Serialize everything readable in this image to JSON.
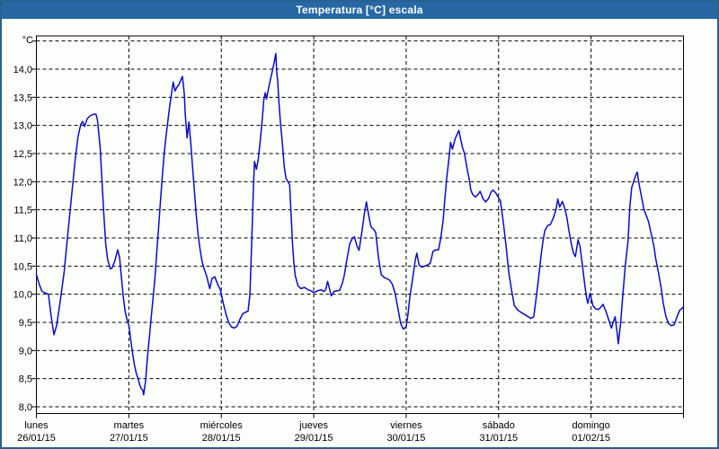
{
  "window": {
    "title": "Temperatura [°C] escala"
  },
  "colors": {
    "titlebar_bg": "#2768a4",
    "titlebar_text": "#ffffff",
    "window_border": "#26618f",
    "background": "#fcfefc",
    "grid": "#000000",
    "frame": "#000000",
    "line": "#0b0bc8",
    "label": "#000000"
  },
  "chart_data": {
    "type": "line",
    "title": "Temperatura [°C] escala",
    "y_unit_label": "°C",
    "ylim": [
      7.9,
      14.6
    ],
    "xlabel": "",
    "ylabel": "°C",
    "grid": "dashed",
    "legend": "none",
    "y_ticks": [
      {
        "value": 8.0,
        "label": "8,0"
      },
      {
        "value": 8.5,
        "label": "8,5"
      },
      {
        "value": 9.0,
        "label": "9,0"
      },
      {
        "value": 9.5,
        "label": "9,5"
      },
      {
        "value": 10.0,
        "label": "10,0"
      },
      {
        "value": 10.5,
        "label": "10,5"
      },
      {
        "value": 11.0,
        "label": "11,0"
      },
      {
        "value": 11.5,
        "label": "11,5"
      },
      {
        "value": 12.0,
        "label": "12,0"
      },
      {
        "value": 12.5,
        "label": "12,5"
      },
      {
        "value": 13.0,
        "label": "13,0"
      },
      {
        "value": 13.5,
        "label": "13,5"
      },
      {
        "value": 14.0,
        "label": "14,0"
      },
      {
        "value": 14.5,
        "label": ""
      }
    ],
    "x_days": [
      {
        "name": "lunes",
        "date": "26/01/15"
      },
      {
        "name": "martes",
        "date": "27/01/15"
      },
      {
        "name": "miércoles",
        "date": "28/01/15"
      },
      {
        "name": "jueves",
        "date": "29/01/15"
      },
      {
        "name": "viernes",
        "date": "30/01/15"
      },
      {
        "name": "sábado",
        "date": "31/01/15"
      },
      {
        "name": "domingo",
        "date": "01/02/15"
      }
    ],
    "series": [
      {
        "name": "Temperatura",
        "color": "#0b0bc8",
        "points": [
          [
            0.0,
            10.35
          ],
          [
            0.03,
            10.18
          ],
          [
            0.06,
            10.05
          ],
          [
            0.1,
            10.02
          ],
          [
            0.13,
            10.0
          ],
          [
            0.16,
            9.6
          ],
          [
            0.19,
            9.28
          ],
          [
            0.22,
            9.45
          ],
          [
            0.26,
            9.9
          ],
          [
            0.3,
            10.4
          ],
          [
            0.33,
            10.9
          ],
          [
            0.36,
            11.4
          ],
          [
            0.39,
            11.9
          ],
          [
            0.42,
            12.4
          ],
          [
            0.45,
            12.8
          ],
          [
            0.48,
            13.02
          ],
          [
            0.5,
            13.07
          ],
          [
            0.52,
            12.98
          ],
          [
            0.55,
            13.12
          ],
          [
            0.58,
            13.17
          ],
          [
            0.62,
            13.2
          ],
          [
            0.645,
            13.2
          ],
          [
            0.66,
            13.1
          ],
          [
            0.69,
            12.6
          ],
          [
            0.71,
            12.0
          ],
          [
            0.73,
            11.4
          ],
          [
            0.75,
            10.9
          ],
          [
            0.77,
            10.62
          ],
          [
            0.8,
            10.45
          ],
          [
            0.82,
            10.47
          ],
          [
            0.85,
            10.6
          ],
          [
            0.88,
            10.79
          ],
          [
            0.9,
            10.65
          ],
          [
            0.92,
            10.3
          ],
          [
            0.94,
            9.95
          ],
          [
            0.96,
            9.7
          ],
          [
            0.98,
            9.55
          ],
          [
            1.0,
            9.45
          ],
          [
            1.02,
            9.2
          ],
          [
            1.04,
            8.95
          ],
          [
            1.06,
            8.75
          ],
          [
            1.08,
            8.6
          ],
          [
            1.1,
            8.5
          ],
          [
            1.12,
            8.38
          ],
          [
            1.135,
            8.32
          ],
          [
            1.15,
            8.3
          ],
          [
            1.16,
            8.21
          ],
          [
            1.18,
            8.45
          ],
          [
            1.2,
            8.85
          ],
          [
            1.22,
            9.2
          ],
          [
            1.24,
            9.55
          ],
          [
            1.26,
            9.9
          ],
          [
            1.28,
            10.25
          ],
          [
            1.3,
            10.7
          ],
          [
            1.32,
            11.15
          ],
          [
            1.34,
            11.6
          ],
          [
            1.36,
            12.05
          ],
          [
            1.38,
            12.45
          ],
          [
            1.4,
            12.78
          ],
          [
            1.42,
            13.05
          ],
          [
            1.44,
            13.32
          ],
          [
            1.46,
            13.55
          ],
          [
            1.47,
            13.66
          ],
          [
            1.48,
            13.77
          ],
          [
            1.5,
            13.61
          ],
          [
            1.52,
            13.68
          ],
          [
            1.54,
            13.72
          ],
          [
            1.56,
            13.8
          ],
          [
            1.58,
            13.87
          ],
          [
            1.6,
            13.55
          ],
          [
            1.61,
            13.2
          ],
          [
            1.63,
            12.78
          ],
          [
            1.65,
            13.06
          ],
          [
            1.67,
            12.68
          ],
          [
            1.69,
            12.25
          ],
          [
            1.71,
            11.82
          ],
          [
            1.73,
            11.4
          ],
          [
            1.75,
            11.05
          ],
          [
            1.77,
            10.8
          ],
          [
            1.79,
            10.6
          ],
          [
            1.81,
            10.47
          ],
          [
            1.84,
            10.33
          ],
          [
            1.86,
            10.2
          ],
          [
            1.875,
            10.1
          ],
          [
            1.9,
            10.28
          ],
          [
            1.93,
            10.31
          ],
          [
            1.96,
            10.18
          ],
          [
            1.99,
            10.08
          ],
          [
            2.02,
            9.85
          ],
          [
            2.05,
            9.65
          ],
          [
            2.08,
            9.5
          ],
          [
            2.11,
            9.42
          ],
          [
            2.14,
            9.4
          ],
          [
            2.17,
            9.43
          ],
          [
            2.2,
            9.55
          ],
          [
            2.23,
            9.65
          ],
          [
            2.26,
            9.68
          ],
          [
            2.29,
            9.7
          ],
          [
            2.31,
            10.0
          ],
          [
            2.33,
            11.0
          ],
          [
            2.35,
            12.0
          ],
          [
            2.36,
            12.36
          ],
          [
            2.38,
            12.22
          ],
          [
            2.4,
            12.4
          ],
          [
            2.42,
            12.7
          ],
          [
            2.44,
            13.05
          ],
          [
            2.46,
            13.45
          ],
          [
            2.475,
            13.58
          ],
          [
            2.49,
            13.47
          ],
          [
            2.51,
            13.65
          ],
          [
            2.53,
            13.8
          ],
          [
            2.55,
            13.95
          ],
          [
            2.57,
            14.1
          ],
          [
            2.59,
            14.28
          ],
          [
            2.6,
            13.95
          ],
          [
            2.61,
            13.79
          ],
          [
            2.62,
            13.5
          ],
          [
            2.64,
            13.05
          ],
          [
            2.66,
            12.7
          ],
          [
            2.68,
            12.28
          ],
          [
            2.7,
            12.06
          ],
          [
            2.72,
            12.0
          ],
          [
            2.74,
            11.95
          ],
          [
            2.755,
            11.4
          ],
          [
            2.77,
            10.92
          ],
          [
            2.785,
            10.55
          ],
          [
            2.8,
            10.33
          ],
          [
            2.83,
            10.15
          ],
          [
            2.86,
            10.1
          ],
          [
            2.9,
            10.12
          ],
          [
            2.94,
            10.08
          ],
          [
            2.97,
            10.06
          ],
          [
            3.0,
            10.03
          ],
          [
            3.04,
            10.06
          ],
          [
            3.08,
            10.08
          ],
          [
            3.11,
            10.05
          ],
          [
            3.13,
            10.08
          ],
          [
            3.15,
            10.23
          ],
          [
            3.17,
            10.1
          ],
          [
            3.19,
            9.97
          ],
          [
            3.22,
            10.05
          ],
          [
            3.25,
            10.06
          ],
          [
            3.28,
            10.07
          ],
          [
            3.31,
            10.2
          ],
          [
            3.33,
            10.33
          ],
          [
            3.36,
            10.63
          ],
          [
            3.39,
            10.9
          ],
          [
            3.42,
            11.0
          ],
          [
            3.44,
            11.02
          ],
          [
            3.47,
            10.85
          ],
          [
            3.49,
            10.78
          ],
          [
            3.52,
            11.1
          ],
          [
            3.55,
            11.45
          ],
          [
            3.57,
            11.64
          ],
          [
            3.6,
            11.35
          ],
          [
            3.62,
            11.2
          ],
          [
            3.65,
            11.15
          ],
          [
            3.67,
            11.1
          ],
          [
            3.7,
            10.65
          ],
          [
            3.73,
            10.35
          ],
          [
            3.76,
            10.3
          ],
          [
            3.79,
            10.28
          ],
          [
            3.82,
            10.25
          ],
          [
            3.85,
            10.18
          ],
          [
            3.88,
            10.02
          ],
          [
            3.91,
            9.75
          ],
          [
            3.94,
            9.48
          ],
          [
            3.97,
            9.38
          ],
          [
            4.0,
            9.42
          ],
          [
            4.02,
            9.65
          ],
          [
            4.04,
            9.95
          ],
          [
            4.06,
            10.17
          ],
          [
            4.08,
            10.4
          ],
          [
            4.1,
            10.62
          ],
          [
            4.115,
            10.73
          ],
          [
            4.14,
            10.52
          ],
          [
            4.17,
            10.48
          ],
          [
            4.2,
            10.5
          ],
          [
            4.23,
            10.52
          ],
          [
            4.26,
            10.55
          ],
          [
            4.29,
            10.76
          ],
          [
            4.32,
            10.79
          ],
          [
            4.35,
            10.79
          ],
          [
            4.375,
            11.0
          ],
          [
            4.4,
            11.32
          ],
          [
            4.42,
            11.72
          ],
          [
            4.44,
            12.09
          ],
          [
            4.46,
            12.36
          ],
          [
            4.48,
            12.7
          ],
          [
            4.5,
            12.58
          ],
          [
            4.53,
            12.76
          ],
          [
            4.55,
            12.84
          ],
          [
            4.57,
            12.91
          ],
          [
            4.59,
            12.75
          ],
          [
            4.61,
            12.6
          ],
          [
            4.63,
            12.51
          ],
          [
            4.66,
            12.22
          ],
          [
            4.68,
            12.06
          ],
          [
            4.7,
            11.85
          ],
          [
            4.72,
            11.77
          ],
          [
            4.75,
            11.73
          ],
          [
            4.78,
            11.78
          ],
          [
            4.8,
            11.83
          ],
          [
            4.83,
            11.7
          ],
          [
            4.86,
            11.64
          ],
          [
            4.89,
            11.7
          ],
          [
            4.92,
            11.82
          ],
          [
            4.94,
            11.85
          ],
          [
            4.97,
            11.8
          ],
          [
            4.99,
            11.74
          ],
          [
            5.02,
            11.66
          ],
          [
            5.05,
            11.29
          ],
          [
            5.08,
            10.87
          ],
          [
            5.11,
            10.39
          ],
          [
            5.14,
            10.07
          ],
          [
            5.17,
            9.8
          ],
          [
            5.2,
            9.73
          ],
          [
            5.24,
            9.68
          ],
          [
            5.28,
            9.64
          ],
          [
            5.32,
            9.6
          ],
          [
            5.35,
            9.57
          ],
          [
            5.38,
            9.6
          ],
          [
            5.4,
            9.85
          ],
          [
            5.43,
            10.25
          ],
          [
            5.46,
            10.7
          ],
          [
            5.48,
            10.95
          ],
          [
            5.5,
            11.13
          ],
          [
            5.53,
            11.22
          ],
          [
            5.56,
            11.24
          ],
          [
            5.59,
            11.35
          ],
          [
            5.62,
            11.5
          ],
          [
            5.64,
            11.69
          ],
          [
            5.66,
            11.55
          ],
          [
            5.69,
            11.65
          ],
          [
            5.72,
            11.5
          ],
          [
            5.74,
            11.35
          ],
          [
            5.76,
            11.13
          ],
          [
            5.79,
            10.87
          ],
          [
            5.81,
            10.73
          ],
          [
            5.83,
            10.67
          ],
          [
            5.86,
            10.97
          ],
          [
            5.88,
            10.85
          ],
          [
            5.9,
            10.6
          ],
          [
            5.93,
            10.2
          ],
          [
            5.95,
            9.95
          ],
          [
            5.965,
            9.84
          ],
          [
            5.99,
            10.02
          ],
          [
            6.02,
            9.8
          ],
          [
            6.05,
            9.74
          ],
          [
            6.08,
            9.73
          ],
          [
            6.11,
            9.78
          ],
          [
            6.13,
            9.82
          ],
          [
            6.16,
            9.7
          ],
          [
            6.19,
            9.55
          ],
          [
            6.22,
            9.4
          ],
          [
            6.24,
            9.5
          ],
          [
            6.26,
            9.6
          ],
          [
            6.28,
            9.35
          ],
          [
            6.295,
            9.12
          ],
          [
            6.32,
            9.5
          ],
          [
            6.34,
            9.91
          ],
          [
            6.37,
            10.5
          ],
          [
            6.4,
            10.95
          ],
          [
            6.42,
            11.56
          ],
          [
            6.44,
            11.9
          ],
          [
            6.46,
            12.0
          ],
          [
            6.48,
            12.1
          ],
          [
            6.5,
            12.17
          ],
          [
            6.52,
            11.95
          ],
          [
            6.54,
            11.78
          ],
          [
            6.57,
            11.52
          ],
          [
            6.59,
            11.43
          ],
          [
            6.62,
            11.3
          ],
          [
            6.65,
            11.08
          ],
          [
            6.68,
            10.85
          ],
          [
            6.7,
            10.63
          ],
          [
            6.73,
            10.38
          ],
          [
            6.76,
            10.1
          ],
          [
            6.78,
            9.85
          ],
          [
            6.81,
            9.6
          ],
          [
            6.84,
            9.48
          ],
          [
            6.87,
            9.44
          ],
          [
            6.9,
            9.46
          ],
          [
            6.93,
            9.6
          ],
          [
            6.96,
            9.72
          ],
          [
            6.98,
            9.74
          ],
          [
            7.0,
            9.78
          ]
        ]
      }
    ]
  }
}
